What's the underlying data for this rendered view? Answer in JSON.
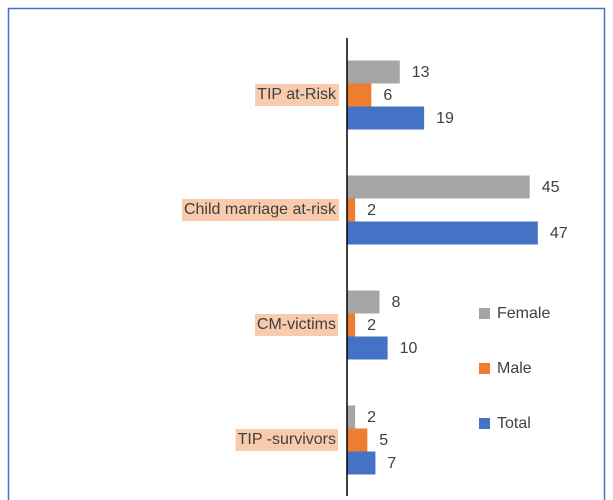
{
  "chart_data": {
    "type": "bar",
    "orientation": "horizontal",
    "categories": [
      "TIP at-Risk",
      "Child marriage at-risk",
      "CM-victims",
      "TIP -survivors"
    ],
    "series": [
      {
        "name": "Female",
        "color": "#a5a5a5",
        "values": [
          13,
          45,
          8,
          2
        ]
      },
      {
        "name": "Male",
        "color": "#ed7d31",
        "values": [
          6,
          2,
          2,
          5
        ]
      },
      {
        "name": "Total",
        "color": "#4472c4",
        "values": [
          19,
          47,
          10,
          7
        ]
      }
    ],
    "xlim": [
      0,
      50
    ],
    "legend": "right"
  }
}
